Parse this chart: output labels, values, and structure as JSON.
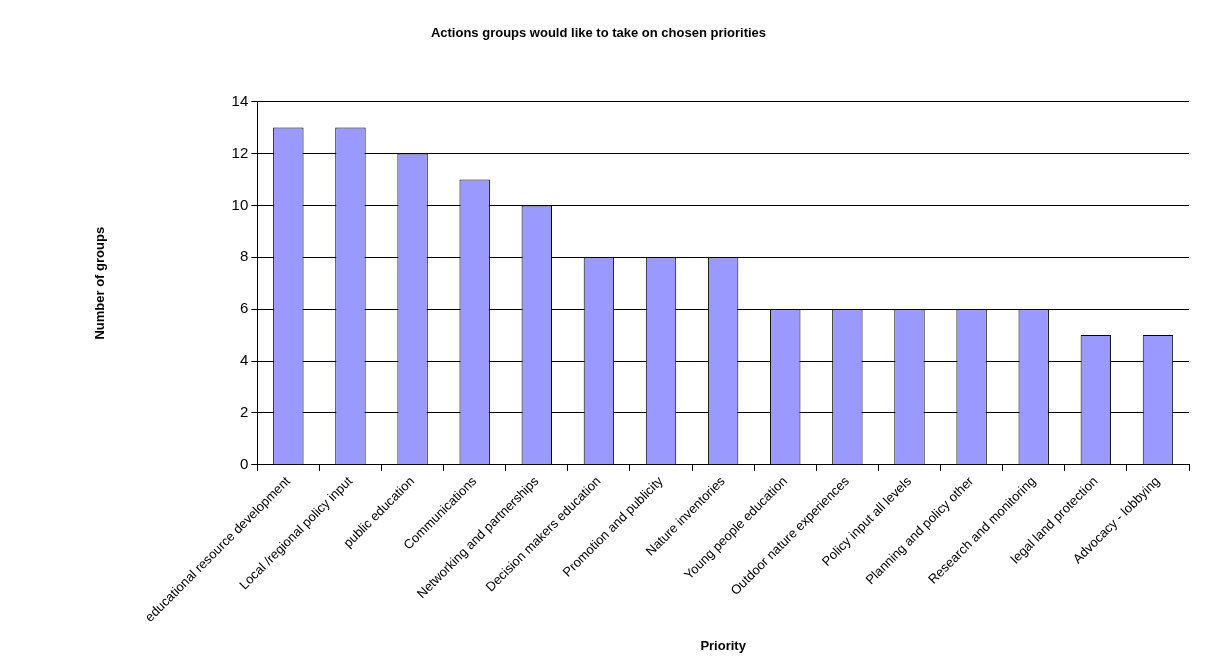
{
  "chart_data": {
    "type": "bar",
    "title": "Actions groups would like to take on chosen priorities",
    "xlabel": "Priority",
    "ylabel": "Number of groups",
    "categories": [
      "educational resource development",
      "Local /regional policy input",
      "public education",
      "Communications",
      "Networking and partnerships",
      "Decision makers education",
      "Promotion and publicity",
      "Nature inventories",
      "Young people education",
      "Outdoor nature experiences",
      "Policy input all levels",
      "Planning and policy other",
      "Research and monitoring",
      "legal land protection",
      "Advocacy - lobbying"
    ],
    "values": [
      13,
      13,
      12,
      11,
      10,
      8,
      8,
      8,
      6,
      6,
      6,
      6,
      6,
      5,
      5
    ],
    "color": "#9999ff",
    "ylim": [
      0,
      14
    ],
    "yticks": [
      0,
      2,
      4,
      6,
      8,
      10,
      12,
      14
    ],
    "grid": "y",
    "legend": false
  }
}
